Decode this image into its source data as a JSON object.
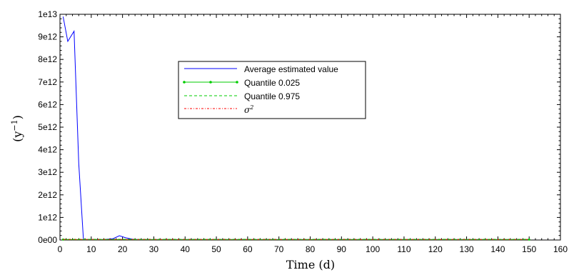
{
  "chart_data": {
    "type": "line",
    "xlabel": "Time (d)",
    "ylabel": "(y",
    "ylabel_superscript": "−1",
    "ylabel_close": ")",
    "xlim": [
      0,
      160
    ],
    "ylim": [
      0,
      10000000000000.0
    ],
    "x_ticks": [
      0,
      10,
      20,
      30,
      40,
      50,
      60,
      70,
      80,
      90,
      100,
      110,
      120,
      130,
      140,
      150,
      160
    ],
    "x_tick_labels": [
      "0",
      "10",
      "20",
      "30",
      "40",
      "50",
      "60",
      "70",
      "80",
      "90",
      "100",
      "110",
      "120",
      "130",
      "140",
      "150",
      "160"
    ],
    "y_ticks": [
      0,
      1000000000000.0,
      2000000000000.0,
      3000000000000.0,
      4000000000000.0,
      5000000000000.0,
      6000000000000.0,
      7000000000000.0,
      8000000000000.0,
      9000000000000.0,
      10000000000000.0
    ],
    "y_tick_labels": [
      "0e00",
      "1e12",
      "2e12",
      "3e12",
      "4e12",
      "5e12",
      "6e12",
      "7e12",
      "8e12",
      "9e12",
      "1e13"
    ],
    "grid": false,
    "legend_position": "upper-center",
    "series": [
      {
        "name": "Average estimated value",
        "color": "#0000ff",
        "style": "solid",
        "x": [
          1,
          2.5,
          4.5,
          6,
          7.5,
          10,
          14,
          17,
          19,
          21,
          23,
          25,
          30,
          40,
          50,
          60,
          70,
          80,
          90,
          100,
          110,
          120,
          130,
          140,
          150
        ],
        "y": [
          9900000000000.0,
          8800000000000.0,
          9250000000000.0,
          3400000000000.0,
          20000000000.0,
          20000000000.0,
          20000000000.0,
          60000000000.0,
          190000000000.0,
          100000000000.0,
          40000000000.0,
          20000000000.0,
          20000000000.0,
          20000000000.0,
          20000000000.0,
          20000000000.0,
          20000000000.0,
          20000000000.0,
          20000000000.0,
          20000000000.0,
          20000000000.0,
          20000000000.0,
          20000000000.0,
          20000000000.0,
          20000000000.0
        ]
      },
      {
        "name": "Quantile 0.025",
        "color": "#00cc00",
        "style": "solid-dot",
        "x": [
          1,
          150
        ],
        "y": [
          20000000000.0,
          20000000000.0
        ]
      },
      {
        "name": "Quantile 0.975",
        "color": "#00cc00",
        "style": "dashed",
        "x": [
          1,
          150
        ],
        "y": [
          30000000000.0,
          30000000000.0
        ]
      },
      {
        "name": "σ",
        "name_superscript": "2",
        "color": "#ff0000",
        "style": "dash-dot",
        "x": [
          1,
          150
        ],
        "y": [
          25000000000.0,
          25000000000.0
        ]
      }
    ]
  }
}
